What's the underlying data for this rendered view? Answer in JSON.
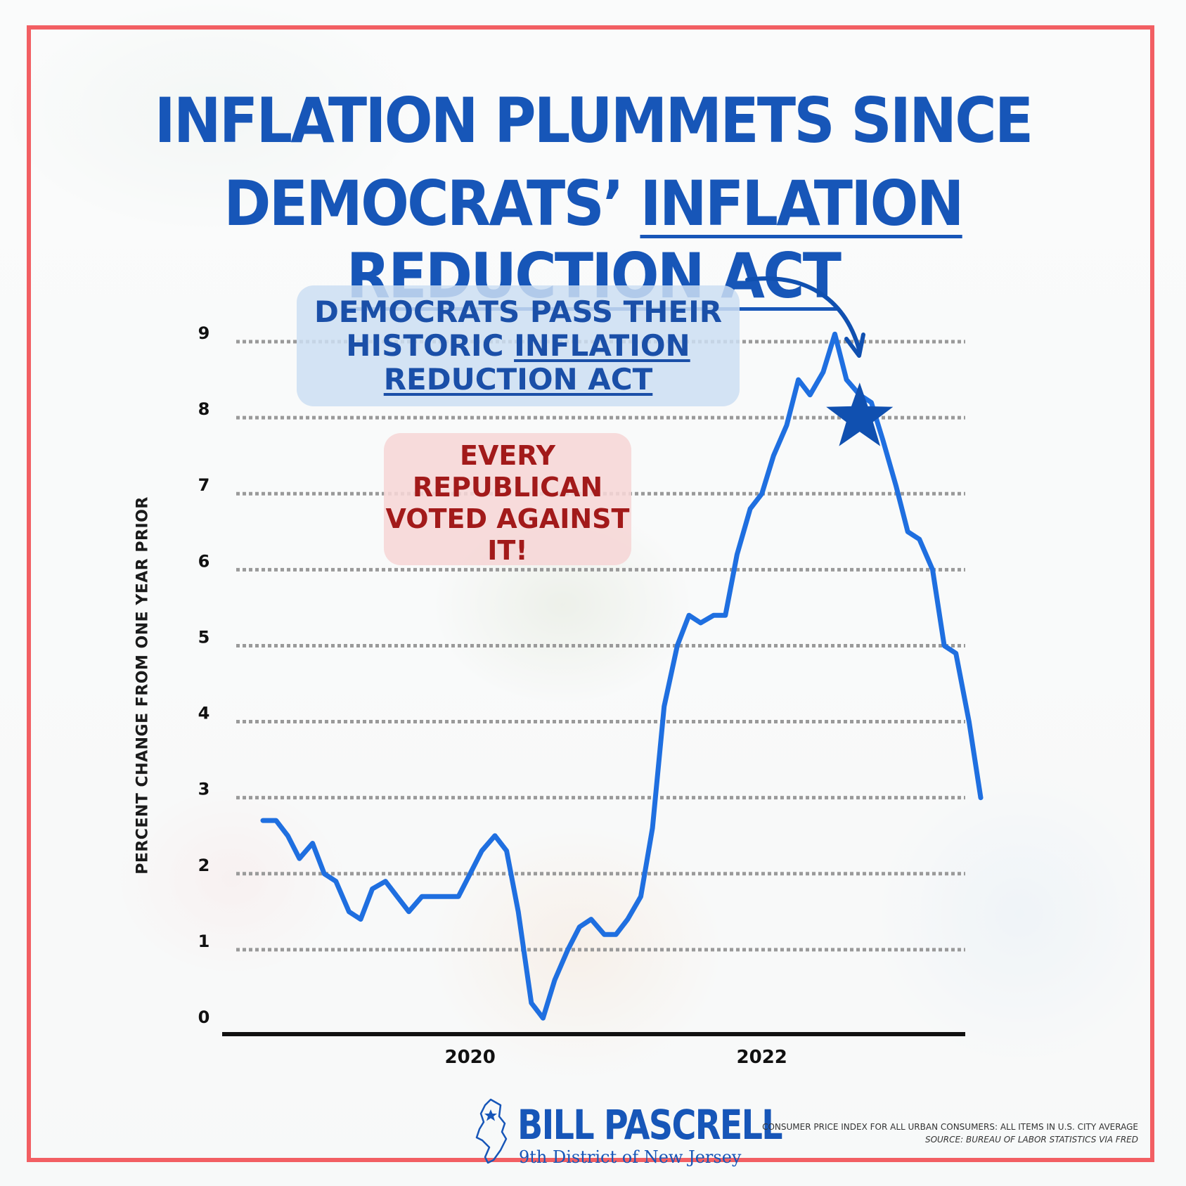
{
  "title_line1": "INFLATION PLUMMETS SINCE",
  "title_line2_prefix": "DEMOCRATS’ ",
  "title_line2_underlined": "INFLATION REDUCTION ACT",
  "callout_blue": {
    "line1": "DEMOCRATS PASS THEIR",
    "line2_prefix": "HISTORIC ",
    "line2_underlined": "INFLATION",
    "line3_underlined": "REDUCTION ACT"
  },
  "callout_red": {
    "lines": [
      "EVERY",
      "REPUBLICAN",
      "VOTED AGAINST",
      "IT!"
    ]
  },
  "colors": {
    "line": "#1f6fe0",
    "title": "#1756b8",
    "frame": "#f25f63",
    "star": "#1050b0",
    "callout_red_text": "#a21a1a"
  },
  "logo": {
    "name": "BILL PASCRELL",
    "subtitle": "9th District of New Jersey",
    "icon": "new-jersey-map-icon"
  },
  "source_note": {
    "line1": "CONSUMER PRICE INDEX FOR ALL URBAN CONSUMERS: ALL ITEMS IN U.S. CITY AVERAGE",
    "line2": "SOURCE: BUREAU OF LABOR STATISTICS VIA FRED"
  },
  "chart_data": {
    "type": "line",
    "ylabel": "PERCENT CHANGE FROM ONE YEAR PRIOR",
    "xlabel": "",
    "ylim": [
      0,
      9
    ],
    "yticks": [
      "0",
      "1",
      "2",
      "3",
      "4",
      "5",
      "6",
      "7",
      "8",
      "9"
    ],
    "xticks": [
      {
        "label": "2020",
        "x": 2020.0
      },
      {
        "label": "2022",
        "x": 2022.0
      }
    ],
    "grid": "horizontal dotted",
    "annotation": {
      "marker": "star",
      "x": 2022.67,
      "y": 8.0
    },
    "series": [
      {
        "x": [
          2018.58,
          2018.67,
          2018.75,
          2018.83,
          2018.92,
          2019.0,
          2019.08,
          2019.17,
          2019.25,
          2019.33,
          2019.42,
          2019.5,
          2019.58,
          2019.67,
          2019.75,
          2019.83,
          2019.92,
          2020.0,
          2020.08,
          2020.17,
          2020.25,
          2020.33,
          2020.42,
          2020.5,
          2020.58,
          2020.67,
          2020.75,
          2020.83,
          2020.92,
          2021.0,
          2021.08,
          2021.17,
          2021.25,
          2021.33,
          2021.42,
          2021.5,
          2021.58,
          2021.67,
          2021.75,
          2021.83,
          2021.92,
          2022.0,
          2022.08,
          2022.17,
          2022.25,
          2022.33,
          2022.42,
          2022.5,
          2022.58,
          2022.67,
          2022.75,
          2022.83,
          2022.92,
          2023.0,
          2023.08,
          2023.17,
          2023.25,
          2023.33,
          2023.42,
          2023.5
        ],
        "values": [
          2.7,
          2.7,
          2.5,
          2.2,
          2.4,
          2.0,
          1.9,
          1.5,
          1.4,
          1.8,
          1.9,
          1.7,
          1.5,
          1.7,
          1.7,
          1.7,
          1.7,
          2.0,
          2.3,
          2.5,
          2.3,
          1.5,
          0.3,
          0.1,
          0.6,
          1.0,
          1.3,
          1.4,
          1.2,
          1.2,
          1.4,
          1.7,
          2.6,
          4.2,
          5.0,
          5.4,
          5.3,
          5.4,
          5.4,
          6.2,
          6.8,
          7.0,
          7.5,
          7.9,
          8.5,
          8.3,
          8.6,
          9.1,
          8.5,
          8.3,
          8.2,
          7.7,
          7.1,
          6.5,
          6.4,
          6.0,
          5.0,
          4.9,
          4.0,
          3.0
        ]
      }
    ]
  }
}
